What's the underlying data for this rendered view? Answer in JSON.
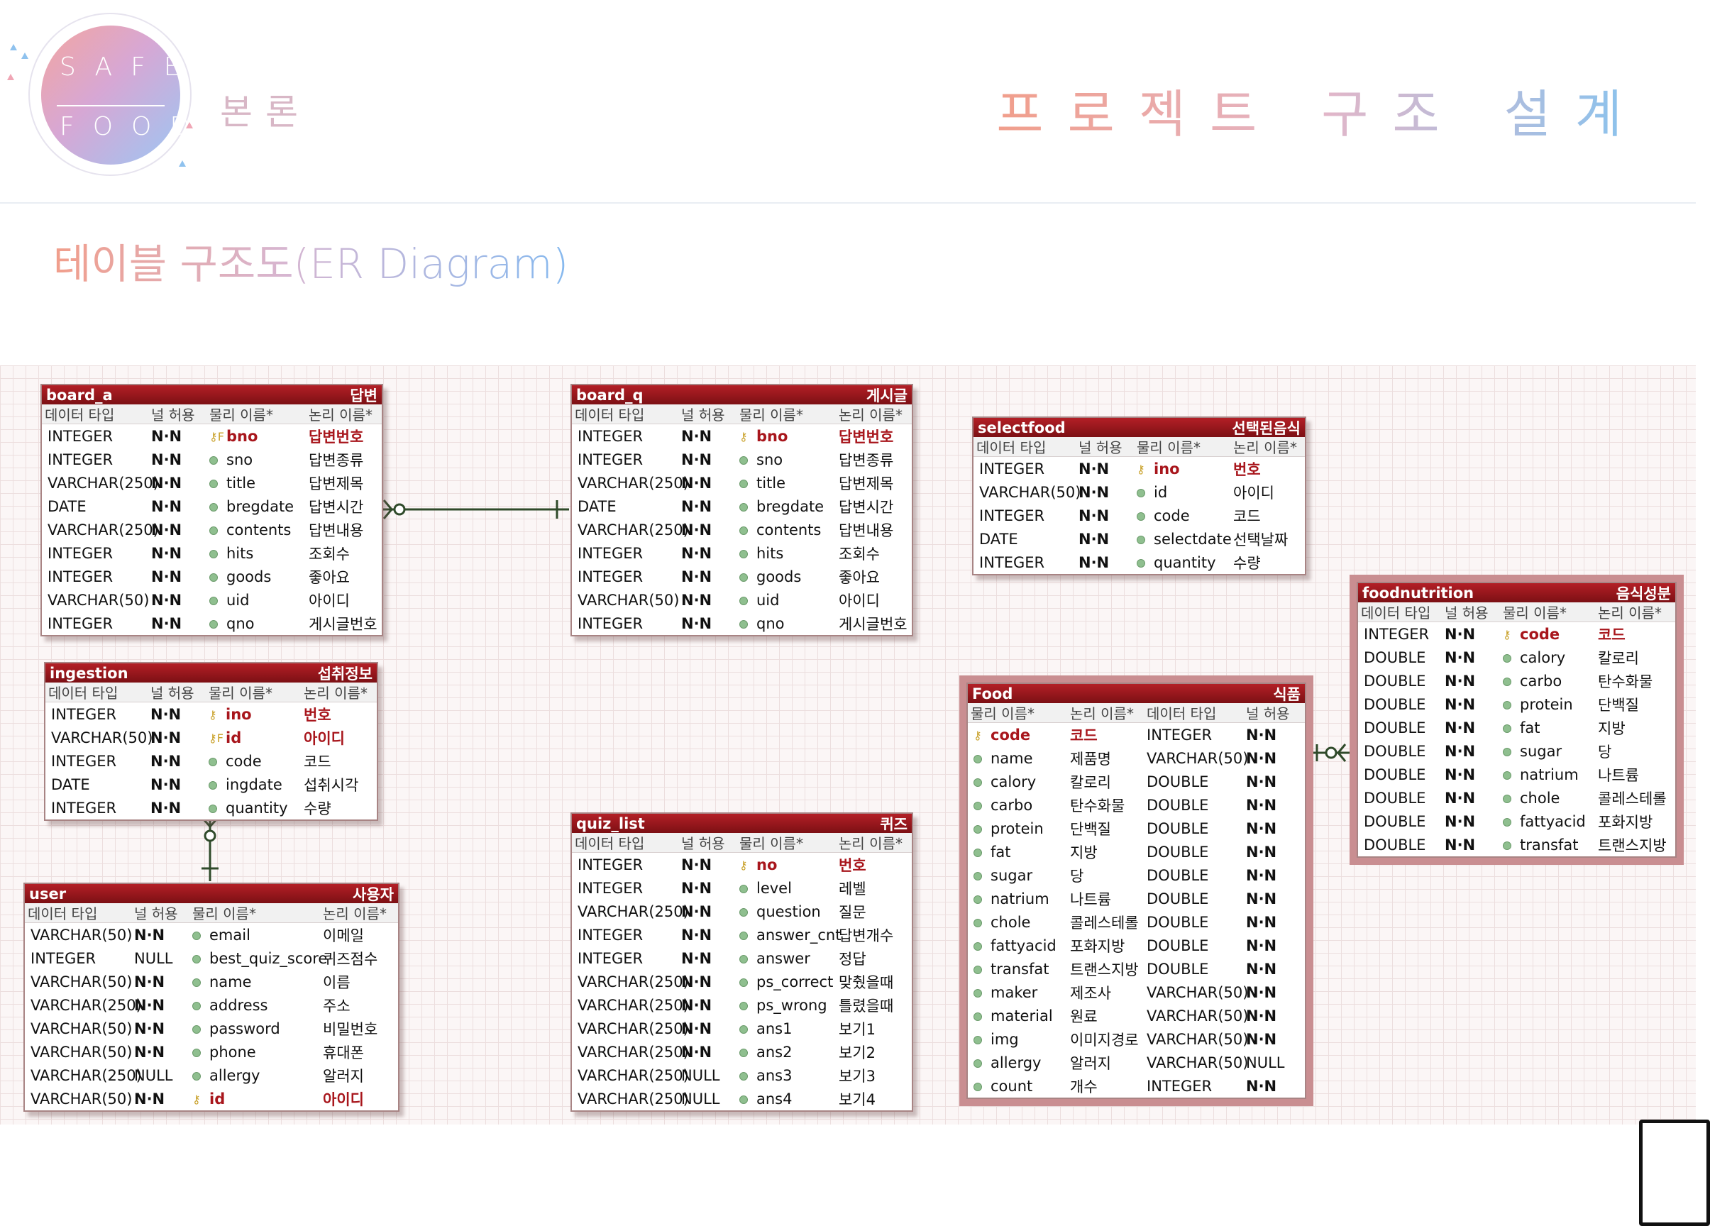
{
  "header": {
    "logo_top": "SAFE",
    "logo_bottom": "FOOD",
    "section": "본론",
    "page_title": "프로젝트 구조 설계",
    "subtitle": "테이블 구조도(ER Diagram)"
  },
  "colors": {
    "table_header": "#9b161c",
    "primary_key": "#a8161c",
    "grid": "#ecdede"
  },
  "col_labels": {
    "type": "데이터 타입",
    "null": "널 허용",
    "phys": "물리 이름*",
    "logic": "논리 이름*"
  },
  "tables": {
    "board_a": {
      "name": "board_a",
      "label": "답변",
      "rows": [
        [
          "INTEGER",
          "N·N",
          "bno",
          "답변번호"
        ],
        [
          "INTEGER",
          "N·N",
          "sno",
          "답변종류"
        ],
        [
          "VARCHAR(250)",
          "N·N",
          "title",
          "답변제목"
        ],
        [
          "DATE",
          "N·N",
          "bregdate",
          "답변시간"
        ],
        [
          "VARCHAR(250)",
          "N·N",
          "contents",
          "답변내용"
        ],
        [
          "INTEGER",
          "N·N",
          "hits",
          "조회수"
        ],
        [
          "INTEGER",
          "N·N",
          "goods",
          "좋아요"
        ],
        [
          "VARCHAR(50)",
          "N·N",
          "uid",
          "아이디"
        ],
        [
          "INTEGER",
          "N·N",
          "qno",
          "게시글번호"
        ]
      ]
    },
    "board_q": {
      "name": "board_q",
      "label": "게시글",
      "rows": [
        [
          "INTEGER",
          "N·N",
          "bno",
          "답변번호"
        ],
        [
          "INTEGER",
          "N·N",
          "sno",
          "답변종류"
        ],
        [
          "VARCHAR(250)",
          "N·N",
          "title",
          "답변제목"
        ],
        [
          "DATE",
          "N·N",
          "bregdate",
          "답변시간"
        ],
        [
          "VARCHAR(250)",
          "N·N",
          "contents",
          "답변내용"
        ],
        [
          "INTEGER",
          "N·N",
          "hits",
          "조회수"
        ],
        [
          "INTEGER",
          "N·N",
          "goods",
          "좋아요"
        ],
        [
          "VARCHAR(50)",
          "N·N",
          "uid",
          "아이디"
        ],
        [
          "INTEGER",
          "N·N",
          "qno",
          "게시글번호"
        ]
      ]
    },
    "selectfood": {
      "name": "selectfood",
      "label": "선택된음식",
      "rows": [
        [
          "INTEGER",
          "N·N",
          "ino",
          "번호"
        ],
        [
          "VARCHAR(50)",
          "N·N",
          "id",
          "아이디"
        ],
        [
          "INTEGER",
          "N·N",
          "code",
          "코드"
        ],
        [
          "DATE",
          "N·N",
          "selectdate",
          "선택날짜"
        ],
        [
          "INTEGER",
          "N·N",
          "quantity",
          "수량"
        ]
      ]
    },
    "ingestion": {
      "name": "ingestion",
      "label": "섭취정보",
      "rows": [
        [
          "INTEGER",
          "N·N",
          "ino",
          "번호"
        ],
        [
          "VARCHAR(50)",
          "N·N",
          "id",
          "아이디"
        ],
        [
          "INTEGER",
          "N·N",
          "code",
          "코드"
        ],
        [
          "DATE",
          "N·N",
          "ingdate",
          "섭취시각"
        ],
        [
          "INTEGER",
          "N·N",
          "quantity",
          "수량"
        ]
      ]
    },
    "user": {
      "name": "user",
      "label": "사용자",
      "rows": [
        [
          "VARCHAR(50)",
          "N·N",
          "email",
          "이메일"
        ],
        [
          "INTEGER",
          "NULL",
          "best_quiz_score",
          "퀴즈점수"
        ],
        [
          "VARCHAR(50)",
          "N·N",
          "name",
          "이름"
        ],
        [
          "VARCHAR(250)",
          "N·N",
          "address",
          "주소"
        ],
        [
          "VARCHAR(50)",
          "N·N",
          "password",
          "비밀번호"
        ],
        [
          "VARCHAR(50)",
          "N·N",
          "phone",
          "휴대폰"
        ],
        [
          "VARCHAR(250)",
          "NULL",
          "allergy",
          "알러지"
        ],
        [
          "VARCHAR(50)",
          "N·N",
          "id",
          "아이디"
        ]
      ]
    },
    "quiz_list": {
      "name": "quiz_list",
      "label": "퀴즈",
      "rows": [
        [
          "INTEGER",
          "N·N",
          "no",
          "번호"
        ],
        [
          "INTEGER",
          "N·N",
          "level",
          "레벨"
        ],
        [
          "VARCHAR(250)",
          "N·N",
          "question",
          "질문"
        ],
        [
          "INTEGER",
          "N·N",
          "answer_cnt",
          "답변개수"
        ],
        [
          "INTEGER",
          "N·N",
          "answer",
          "정답"
        ],
        [
          "VARCHAR(250)",
          "N·N",
          "ps_correct",
          "맞췄을때"
        ],
        [
          "VARCHAR(250)",
          "N·N",
          "ps_wrong",
          "틀렸을때"
        ],
        [
          "VARCHAR(250)",
          "N·N",
          "ans1",
          "보기1"
        ],
        [
          "VARCHAR(250)",
          "N·N",
          "ans2",
          "보기2"
        ],
        [
          "VARCHAR(250)",
          "NULL",
          "ans3",
          "보기3"
        ],
        [
          "VARCHAR(250)",
          "NULL",
          "ans4",
          "보기4"
        ]
      ]
    },
    "food": {
      "name": "Food",
      "label": "식품",
      "rows": [
        [
          "code",
          "코드",
          "INTEGER",
          "N·N"
        ],
        [
          "name",
          "제품명",
          "VARCHAR(50)",
          "N·N"
        ],
        [
          "calory",
          "칼로리",
          "DOUBLE",
          "N·N"
        ],
        [
          "carbo",
          "탄수화물",
          "DOUBLE",
          "N·N"
        ],
        [
          "protein",
          "단백질",
          "DOUBLE",
          "N·N"
        ],
        [
          "fat",
          "지방",
          "DOUBLE",
          "N·N"
        ],
        [
          "sugar",
          "당",
          "DOUBLE",
          "N·N"
        ],
        [
          "natrium",
          "나트륨",
          "DOUBLE",
          "N·N"
        ],
        [
          "chole",
          "콜레스테롤",
          "DOUBLE",
          "N·N"
        ],
        [
          "fattyacid",
          "포화지방",
          "DOUBLE",
          "N·N"
        ],
        [
          "transfat",
          "트랜스지방",
          "DOUBLE",
          "N·N"
        ],
        [
          "maker",
          "제조사",
          "VARCHAR(50)",
          "N·N"
        ],
        [
          "material",
          "원료",
          "VARCHAR(50)",
          "N·N"
        ],
        [
          "img",
          "이미지경로",
          "VARCHAR(50)",
          "N·N"
        ],
        [
          "allergy",
          "알러지",
          "VARCHAR(50)",
          "NULL"
        ],
        [
          "count",
          "개수",
          "INTEGER",
          "N·N"
        ]
      ]
    },
    "foodnutrition": {
      "name": "foodnutrition",
      "label": "음식성분",
      "rows": [
        [
          "INTEGER",
          "N·N",
          "code",
          "코드"
        ],
        [
          "DOUBLE",
          "N·N",
          "calory",
          "칼로리"
        ],
        [
          "DOUBLE",
          "N·N",
          "carbo",
          "탄수화물"
        ],
        [
          "DOUBLE",
          "N·N",
          "protein",
          "단백질"
        ],
        [
          "DOUBLE",
          "N·N",
          "fat",
          "지방"
        ],
        [
          "DOUBLE",
          "N·N",
          "sugar",
          "당"
        ],
        [
          "DOUBLE",
          "N·N",
          "natrium",
          "나트륨"
        ],
        [
          "DOUBLE",
          "N·N",
          "chole",
          "콜레스테롤"
        ],
        [
          "DOUBLE",
          "N·N",
          "fattyacid",
          "포화지방"
        ],
        [
          "DOUBLE",
          "N·N",
          "transfat",
          "트랜스지방"
        ]
      ]
    }
  }
}
